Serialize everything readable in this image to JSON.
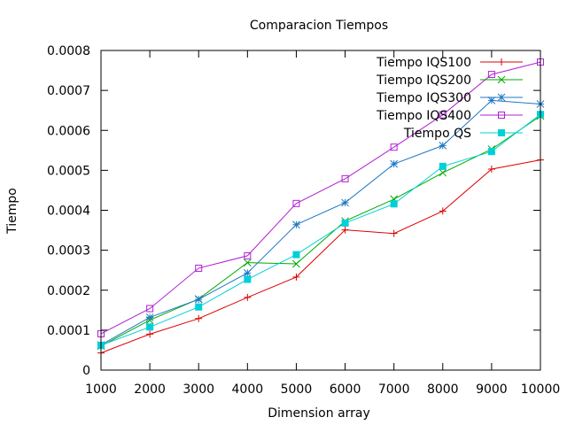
{
  "chart_data": {
    "type": "line",
    "title": "Comparacion Tiempos",
    "xlabel": "Dimension array",
    "ylabel": "Tiempo",
    "x": [
      1000,
      2000,
      3000,
      4000,
      5000,
      6000,
      7000,
      8000,
      9000,
      10000
    ],
    "xlim": [
      1000,
      10000
    ],
    "ylim": [
      0,
      0.0008
    ],
    "xticks": [
      "1000",
      "2000",
      "3000",
      "4000",
      "5000",
      "6000",
      "7000",
      "8000",
      "9000",
      "10000"
    ],
    "yticks": [
      "0",
      "0.0001",
      "0.0002",
      "0.0003",
      "0.0004",
      "0.0005",
      "0.0006",
      "0.0007",
      "0.0008"
    ],
    "grid": false,
    "legend_position": "top-right",
    "series": [
      {
        "name": "Tiempo IQS100",
        "color": "#dd0000",
        "marker": "plus",
        "values": [
          4.3e-05,
          9e-05,
          0.000129,
          0.000182,
          0.000233,
          0.000351,
          0.000342,
          0.000398,
          0.000503,
          0.000526
        ]
      },
      {
        "name": "Tiempo IQS200",
        "color": "#00aa00",
        "marker": "cross",
        "values": [
          6e-05,
          0.000125,
          0.000178,
          0.000269,
          0.000266,
          0.000373,
          0.000428,
          0.000494,
          0.000553,
          0.000636
        ]
      },
      {
        "name": "Tiempo IQS300",
        "color": "#1f77c4",
        "marker": "star",
        "values": [
          6.3e-05,
          0.000132,
          0.000177,
          0.000243,
          0.000364,
          0.000419,
          0.000516,
          0.000562,
          0.000675,
          0.000666
        ]
      },
      {
        "name": "Tiempo IQS400",
        "color": "#b020d0",
        "marker": "square",
        "values": [
          9.1e-05,
          0.000154,
          0.000255,
          0.000286,
          0.000417,
          0.000479,
          0.000558,
          0.000639,
          0.00074,
          0.000771
        ]
      },
      {
        "name": "Tiempo QS",
        "color": "#00d0d8",
        "marker": "filled-square",
        "values": [
          6.2e-05,
          0.000108,
          0.000158,
          0.000227,
          0.000289,
          0.000368,
          0.000416,
          0.00051,
          0.000547,
          0.00064
        ]
      }
    ]
  }
}
